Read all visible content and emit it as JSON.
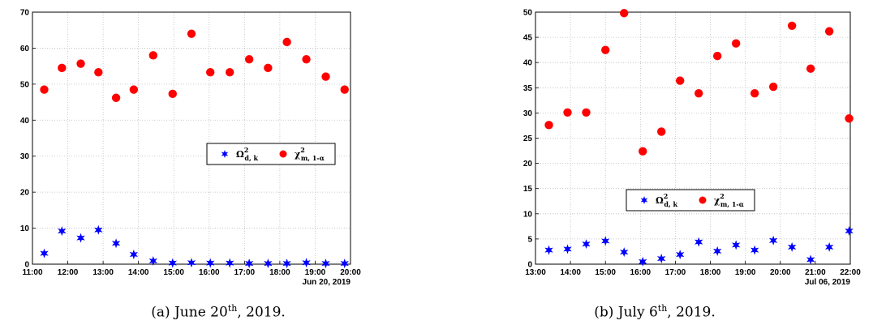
{
  "chart_data": [
    {
      "type": "scatter",
      "title": "",
      "xlabel": "",
      "ylabel": "",
      "date_label": "Jun 20, 2019",
      "x_ticks": [
        "11:00",
        "12:00",
        "13:00",
        "14:00",
        "15:00",
        "16:00",
        "17:00",
        "18:00",
        "19:00",
        "20:00"
      ],
      "xlim": [
        "11:00",
        "20:00"
      ],
      "ylim": [
        0,
        70
      ],
      "y_ticks": [
        0,
        10,
        20,
        30,
        40,
        50,
        60,
        70
      ],
      "grid": true,
      "legend_position": "middle-right",
      "series": [
        {
          "legend": {
            "base": "Ω",
            "sup": "2",
            "sub": "d, k"
          },
          "marker": "star",
          "color": "#0000ff",
          "x": [
            "11:20",
            "11:50",
            "12:22",
            "12:52",
            "13:22",
            "13:52",
            "14:25",
            "14:58",
            "15:30",
            "16:02",
            "16:35",
            "17:08",
            "17:40",
            "18:12",
            "18:45",
            "19:18",
            "19:50"
          ],
          "y": [
            3.0,
            9.2,
            7.3,
            9.5,
            5.8,
            2.7,
            0.9,
            0.3,
            0.4,
            0.3,
            0.3,
            0.2,
            0.2,
            0.2,
            0.4,
            0.2,
            0.2
          ]
        },
        {
          "legend": {
            "base": "χ",
            "sup": "2",
            "sub": "m, 1-α"
          },
          "marker": "circle",
          "color": "#ff0000",
          "x": [
            "11:20",
            "11:50",
            "12:22",
            "12:52",
            "13:22",
            "13:52",
            "14:25",
            "14:58",
            "15:30",
            "16:02",
            "16:35",
            "17:08",
            "17:40",
            "18:12",
            "18:45",
            "19:18",
            "19:50"
          ],
          "y": [
            48.5,
            54.5,
            55.7,
            53.3,
            46.2,
            48.5,
            58.0,
            47.3,
            64.0,
            53.3,
            53.3,
            56.9,
            54.5,
            61.7,
            56.9,
            52.1,
            48.5
          ]
        }
      ],
      "caption": {
        "prefix": "(a) June 20",
        "sup": "th",
        "suffix": ", 2019."
      }
    },
    {
      "type": "scatter",
      "title": "",
      "xlabel": "",
      "ylabel": "",
      "date_label": "Jul 06, 2019",
      "x_ticks": [
        "13:00",
        "14:00",
        "15:00",
        "16:00",
        "17:00",
        "18:00",
        "19:00",
        "20:00",
        "21:00",
        "22:00"
      ],
      "xlim": [
        "13:00",
        "22:00"
      ],
      "ylim": [
        0,
        50
      ],
      "y_ticks": [
        0,
        5,
        10,
        15,
        20,
        25,
        30,
        35,
        40,
        45,
        50
      ],
      "grid": true,
      "legend_position": "lower-center",
      "series": [
        {
          "legend": {
            "base": "Ω",
            "sup": "2",
            "sub": "d, k"
          },
          "marker": "star",
          "color": "#0000ff",
          "x": [
            "13:23",
            "13:55",
            "14:27",
            "15:00",
            "15:32",
            "16:04",
            "16:36",
            "17:08",
            "17:40",
            "18:12",
            "18:44",
            "19:16",
            "19:48",
            "20:20",
            "20:52",
            "21:24",
            "21:58"
          ],
          "y": [
            2.8,
            3.0,
            4.0,
            4.6,
            2.4,
            0.5,
            1.1,
            1.9,
            4.4,
            2.6,
            3.8,
            2.8,
            4.7,
            3.4,
            0.9,
            3.4,
            6.6
          ]
        },
        {
          "legend": {
            "base": "χ",
            "sup": "2",
            "sub": "m, 1-α"
          },
          "marker": "circle",
          "color": "#ff0000",
          "x": [
            "13:23",
            "13:55",
            "14:27",
            "15:00",
            "15:32",
            "16:04",
            "16:36",
            "17:08",
            "17:40",
            "18:12",
            "18:44",
            "19:16",
            "19:48",
            "20:20",
            "20:52",
            "21:24",
            "21:58"
          ],
          "y": [
            27.6,
            30.1,
            30.1,
            42.5,
            49.8,
            22.4,
            26.3,
            36.4,
            33.9,
            41.3,
            43.8,
            33.9,
            35.2,
            47.3,
            38.8,
            46.2,
            28.9
          ]
        }
      ],
      "caption": {
        "prefix": "(b) July 6",
        "sup": "th",
        "suffix": ", 2019."
      }
    }
  ]
}
